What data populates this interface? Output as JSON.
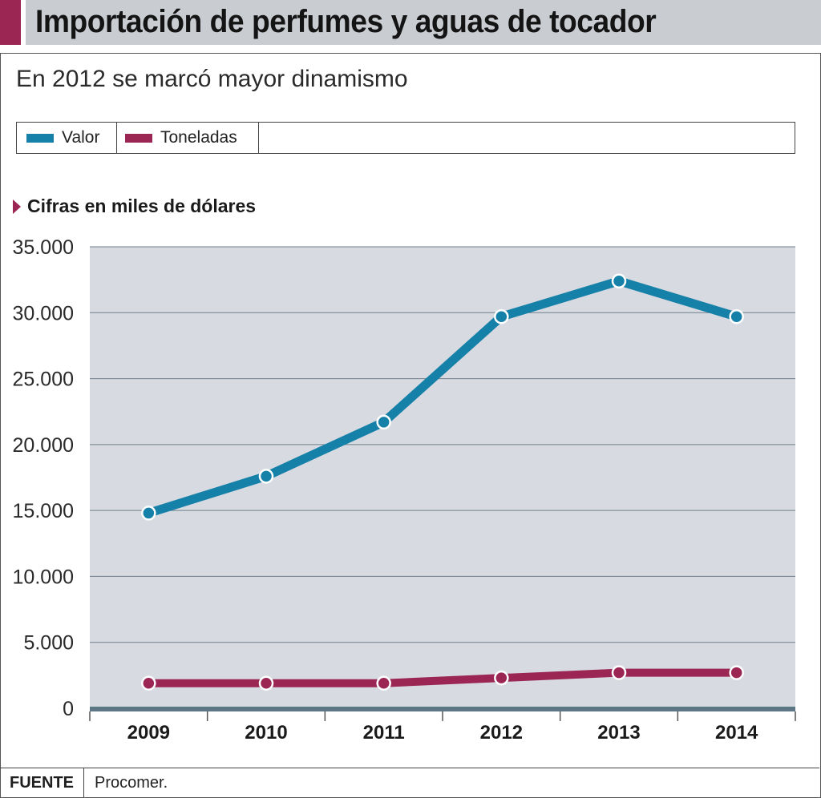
{
  "header": {
    "title": "Importación de perfumes y aguas de tocador"
  },
  "subtitle": "En 2012 se marcó mayor dinamismo",
  "legend": [
    {
      "label": "Valor",
      "color": "#1580a8"
    },
    {
      "label": "Toneladas",
      "color": "#9b2654"
    }
  ],
  "section_label": "Cifras en miles de dólares",
  "colors": {
    "accent": "#9b2654",
    "plot_bg": "#d7dae0",
    "axis": "#5d7685"
  },
  "chart_data": {
    "type": "line",
    "title": "",
    "xlabel": "",
    "ylabel": "",
    "categories": [
      "2009",
      "2010",
      "2011",
      "2012",
      "2013",
      "2014"
    ],
    "ylim": [
      0,
      35000
    ],
    "yticks": [
      0,
      5000,
      10000,
      15000,
      20000,
      25000,
      30000,
      35000
    ],
    "ytick_labels": [
      "0",
      "5.000",
      "10.000",
      "15.000",
      "20.000",
      "25.000",
      "30.000",
      "35.000"
    ],
    "grid": true,
    "series": [
      {
        "name": "Valor",
        "color": "#1580a8",
        "values": [
          14800,
          17600,
          21700,
          29700,
          32400,
          29700
        ]
      },
      {
        "name": "Toneladas",
        "color": "#9b2654",
        "values": [
          1900,
          1900,
          1900,
          2300,
          2700,
          2700
        ]
      }
    ]
  },
  "footer": {
    "label": "FUENTE",
    "source": "Procomer."
  }
}
